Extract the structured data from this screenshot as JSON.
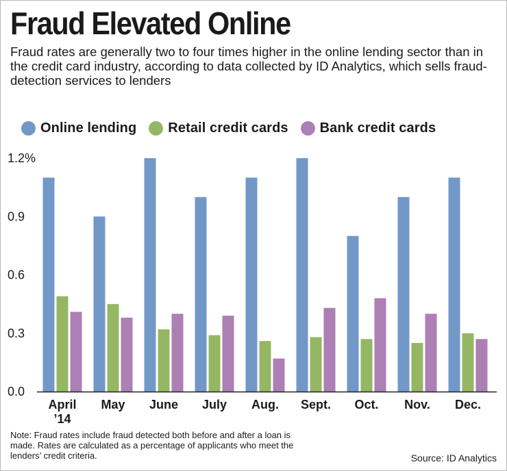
{
  "header": {
    "title": "Fraud Elevated Online",
    "subtitle": "Fraud rates are generally two to four times higher in the online lending sector than in the credit card industry, according to data collected by ID Analytics, which sells fraud-detection services to lenders"
  },
  "footer": {
    "note": "Note: Fraud rates include fraud detected both before and after a loan is made. Rates are calculated as a percentage of applicants who meet the lenders’ credit criteria.",
    "source": "Source: ID Analytics"
  },
  "chart_data": {
    "type": "bar",
    "title": "Fraud Elevated Online",
    "xlabel": "",
    "ylabel": "",
    "categories": [
      "April\n’14",
      "May",
      "June",
      "July",
      "Aug.",
      "Sept.",
      "Oct.",
      "Nov.",
      "Dec."
    ],
    "series": [
      {
        "name": "Online lending",
        "color": "#7298c8",
        "values": [
          1.1,
          0.9,
          1.2,
          1.0,
          1.1,
          1.2,
          0.8,
          1.0,
          1.1
        ]
      },
      {
        "name": "Retail credit cards",
        "color": "#95b763",
        "values": [
          0.49,
          0.45,
          0.32,
          0.29,
          0.26,
          0.28,
          0.27,
          0.25,
          0.3
        ]
      },
      {
        "name": "Bank credit cards",
        "color": "#ac7fb5",
        "values": [
          0.41,
          0.38,
          0.4,
          0.39,
          0.17,
          0.43,
          0.48,
          0.4,
          0.27
        ]
      }
    ],
    "ylim": [
      0,
      1.2
    ],
    "yticks": [
      0,
      0.3,
      0.6,
      0.9,
      1.2
    ],
    "ytick_labels": [
      "0.0",
      "0.3",
      "0.6",
      "0.9",
      "1.2%"
    ],
    "grid": false,
    "legend_position": "top"
  }
}
